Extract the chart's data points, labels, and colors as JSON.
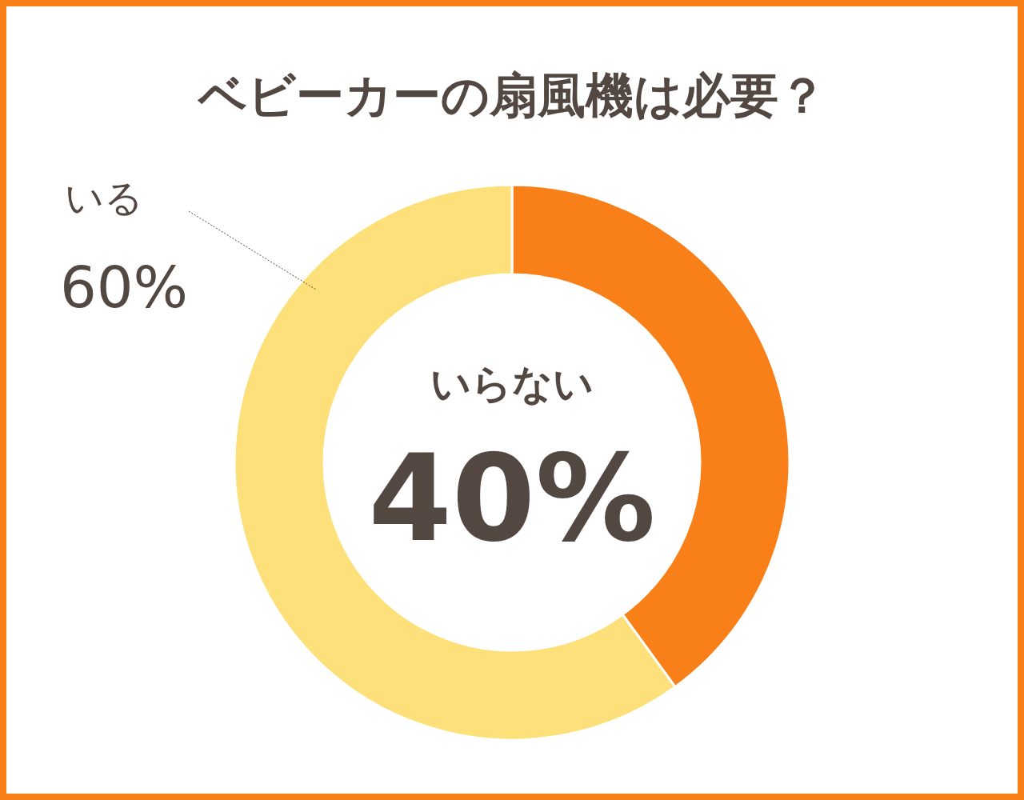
{
  "chart_data": {
    "type": "donut",
    "title": "ベビーカーの扇風機は必要？",
    "categories": [
      "いらない",
      "いる"
    ],
    "values": [
      40,
      60
    ],
    "colors": [
      "#f98019",
      "#fde07a"
    ],
    "value_labels": [
      "40%",
      "60%"
    ]
  }
}
